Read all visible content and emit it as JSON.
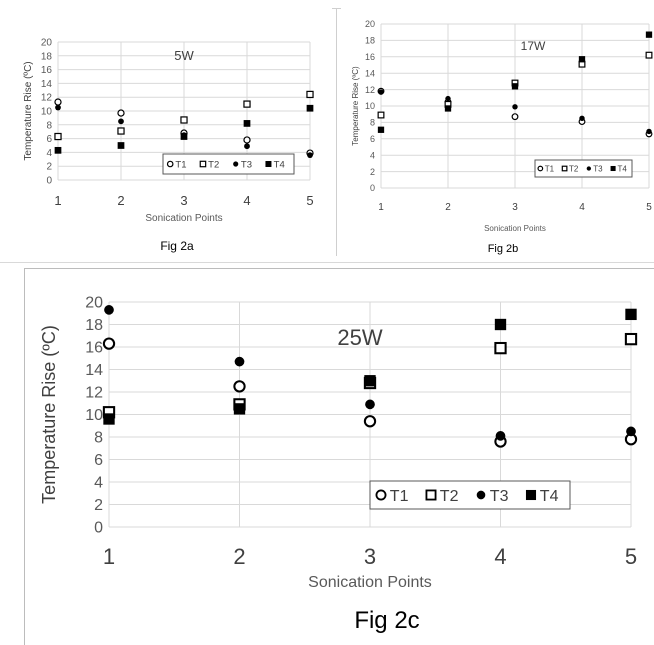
{
  "chart_data": [
    {
      "id": "a",
      "type": "scatter",
      "title": "5W",
      "caption": "Fig 2a",
      "xlabel": "Sonication Points",
      "ylabel": "Temperature Rise (ºC)",
      "x": [
        1,
        2,
        3,
        4,
        5
      ],
      "xlim": [
        1,
        5
      ],
      "ylim": [
        0,
        20
      ],
      "ytick_step": 2,
      "grid": true,
      "legend": "bottom-right",
      "series": [
        {
          "name": "T1",
          "marker": "open-circle",
          "values": [
            11.3,
            9.7,
            6.8,
            5.8,
            3.9
          ]
        },
        {
          "name": "T2",
          "marker": "open-square",
          "values": [
            6.3,
            7.1,
            8.7,
            11.0,
            12.4
          ]
        },
        {
          "name": "T3",
          "marker": "filled-circle",
          "values": [
            10.5,
            8.5,
            6.5,
            4.9,
            3.6
          ]
        },
        {
          "name": "T4",
          "marker": "filled-square",
          "values": [
            4.3,
            5.0,
            6.3,
            8.2,
            10.4
          ]
        }
      ]
    },
    {
      "id": "b",
      "type": "scatter",
      "title": "17W",
      "caption": "Fig 2b",
      "xlabel": "Sonication Points",
      "ylabel": "Temperature Rise (ºC)",
      "x": [
        1,
        2,
        3,
        4,
        5
      ],
      "xlim": [
        1,
        5
      ],
      "ylim": [
        0,
        20
      ],
      "ytick_step": 2,
      "grid": true,
      "legend": "bottom-right",
      "series": [
        {
          "name": "T1",
          "marker": "open-circle",
          "values": [
            11.8,
            10.5,
            8.7,
            8.1,
            6.6
          ]
        },
        {
          "name": "T2",
          "marker": "open-square",
          "values": [
            8.9,
            10.2,
            12.8,
            15.1,
            16.2
          ]
        },
        {
          "name": "T3",
          "marker": "filled-circle",
          "values": [
            11.7,
            10.9,
            9.9,
            8.5,
            6.9
          ]
        },
        {
          "name": "T4",
          "marker": "filled-square",
          "values": [
            7.1,
            9.7,
            12.4,
            15.7,
            18.7
          ]
        }
      ]
    },
    {
      "id": "c",
      "type": "scatter",
      "title": "25W",
      "caption": "Fig 2c",
      "xlabel": "Sonication Points",
      "ylabel": "Temperature Rise (ºC)",
      "x": [
        1,
        2,
        3,
        4,
        5
      ],
      "xlim": [
        1,
        5
      ],
      "ylim": [
        0,
        20
      ],
      "ytick_step": 2,
      "grid": true,
      "legend": "bottom-right",
      "series": [
        {
          "name": "T1",
          "marker": "open-circle",
          "values": [
            16.3,
            12.5,
            9.4,
            7.6,
            7.8
          ]
        },
        {
          "name": "T2",
          "marker": "open-square",
          "values": [
            10.2,
            10.9,
            12.8,
            15.9,
            16.7
          ]
        },
        {
          "name": "T3",
          "marker": "filled-circle",
          "values": [
            19.3,
            14.7,
            10.9,
            8.1,
            8.5
          ]
        },
        {
          "name": "T4",
          "marker": "filled-square",
          "values": [
            9.6,
            10.5,
            13.0,
            18.0,
            18.9
          ]
        }
      ]
    }
  ]
}
